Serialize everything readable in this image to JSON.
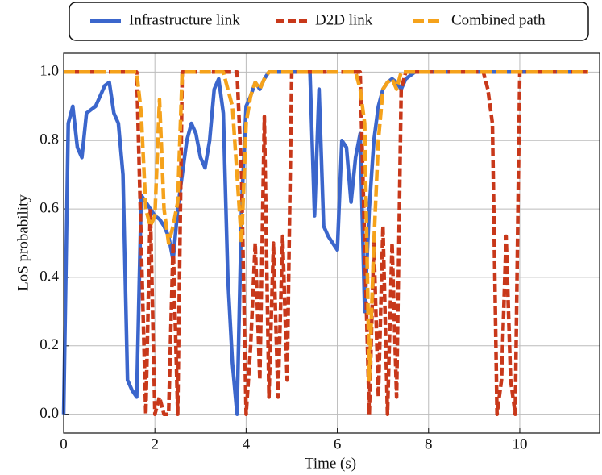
{
  "chart_data": {
    "type": "line",
    "xlabel": "Time (s)",
    "ylabel": "LoS probability",
    "x": [
      0,
      0.1,
      0.2,
      0.3,
      0.4,
      0.5,
      0.6,
      0.7,
      0.8,
      0.9,
      1,
      1.1,
      1.2,
      1.3,
      1.4,
      1.5,
      1.6,
      1.7,
      1.8,
      1.9,
      2,
      2.1,
      2.2,
      2.3,
      2.4,
      2.5,
      2.6,
      2.7,
      2.8,
      2.9,
      3,
      3.1,
      3.2,
      3.3,
      3.4,
      3.5,
      3.6,
      3.7,
      3.8,
      3.9,
      4,
      4.1,
      4.2,
      4.3,
      4.4,
      4.5,
      4.6,
      4.7,
      4.8,
      4.9,
      5,
      5.1,
      5.2,
      5.3,
      5.4,
      5.5,
      5.6,
      5.7,
      5.8,
      5.9,
      6,
      6.1,
      6.2,
      6.3,
      6.4,
      6.5,
      6.6,
      6.7,
      6.8,
      6.9,
      7,
      7.1,
      7.2,
      7.3,
      7.4,
      7.5,
      7.6,
      7.7,
      7.8,
      7.9,
      8,
      8.1,
      8.2,
      8.3,
      8.4,
      8.5,
      8.6,
      8.7,
      8.8,
      8.9,
      9,
      9.1,
      9.2,
      9.3,
      9.4,
      9.5,
      9.6,
      9.7,
      9.8,
      9.9,
      10,
      10.1,
      10.2,
      10.3,
      10.4,
      10.5,
      10.6,
      10.7,
      10.8,
      10.9,
      11,
      11.1,
      11.2,
      11.3,
      11.4,
      11.5
    ],
    "series": [
      {
        "name": "Infrastructure link",
        "color": "#3b66cc",
        "dash": "none",
        "values": [
          0,
          0.85,
          0.9,
          0.78,
          0.75,
          0.88,
          0.89,
          0.9,
          0.93,
          0.96,
          0.97,
          0.88,
          0.85,
          0.7,
          0.1,
          0.07,
          0.05,
          0.64,
          0.62,
          0.6,
          0.58,
          0.57,
          0.55,
          0.52,
          0.45,
          0.6,
          0.7,
          0.8,
          0.85,
          0.82,
          0.75,
          0.72,
          0.8,
          0.95,
          0.98,
          0.88,
          0.4,
          0.15,
          0,
          0.6,
          0.9,
          0.93,
          0.97,
          0.95,
          0.98,
          1,
          1,
          1,
          1,
          1,
          1,
          1,
          1,
          1,
          1,
          0.58,
          0.95,
          0.55,
          0.52,
          0.5,
          0.48,
          0.8,
          0.78,
          0.62,
          0.75,
          0.82,
          0.3,
          0.6,
          0.8,
          0.9,
          0.95,
          0.97,
          0.98,
          0.97,
          0.95,
          0.98,
          0.99,
          1,
          1,
          1,
          1,
          1,
          1,
          1,
          1,
          1,
          1,
          1,
          1,
          1,
          1,
          1,
          1,
          1,
          1,
          1,
          1,
          1,
          1,
          1,
          1,
          1,
          1,
          1,
          1,
          1,
          1,
          1,
          1,
          1,
          1,
          1,
          1,
          1,
          1,
          1
        ]
      },
      {
        "name": "D2D link",
        "color": "#c8381a",
        "dash": "10,4",
        "values": [
          1,
          1,
          1,
          1,
          1,
          1,
          1,
          1,
          1,
          1,
          1,
          1,
          1,
          1,
          1,
          1,
          1,
          0.5,
          0,
          0.6,
          0,
          0.05,
          0,
          0,
          0.5,
          0,
          1,
          1,
          1,
          1,
          1,
          1,
          1,
          1,
          1,
          1,
          1,
          1,
          1,
          0.7,
          0,
          0.2,
          0.5,
          0.1,
          0.87,
          0.05,
          0.5,
          0.05,
          0.52,
          0.1,
          1,
          1,
          1,
          1,
          1,
          1,
          1,
          1,
          1,
          1,
          1,
          1,
          1,
          1,
          1,
          1,
          0.5,
          0,
          0.5,
          0.05,
          0.55,
          0,
          0.5,
          0.05,
          0.95,
          1,
          1,
          1,
          1,
          1,
          1,
          1,
          1,
          1,
          1,
          1,
          1,
          1,
          1,
          1,
          1,
          1,
          1,
          0.95,
          0.85,
          0,
          0.1,
          0.52,
          0.1,
          0,
          1,
          1,
          1,
          1,
          1,
          1,
          1,
          1,
          1,
          1,
          1,
          1,
          1,
          1,
          1,
          1
        ]
      },
      {
        "name": "Combined path",
        "color": "#f5a21b",
        "dash": "14,5",
        "values": [
          1,
          1,
          1,
          1,
          1,
          1,
          1,
          1,
          1,
          1,
          1,
          1,
          1,
          1,
          1,
          1,
          1,
          0.88,
          0.6,
          0.55,
          0.58,
          0.92,
          0.6,
          0.5,
          0.55,
          0.62,
          1,
          1,
          1,
          1,
          1,
          1,
          1,
          1,
          1,
          1,
          0.95,
          0.9,
          0.7,
          0.5,
          0.85,
          0.93,
          0.97,
          0.95,
          0.98,
          1,
          1,
          1,
          1,
          1,
          1,
          1,
          1,
          1,
          1,
          1,
          1,
          1,
          1,
          1,
          1,
          1,
          1,
          1,
          1,
          0.95,
          0.85,
          0.1,
          0.5,
          0.8,
          0.95,
          0.97,
          0.98,
          0.95,
          1,
          1,
          1,
          1,
          1,
          1,
          1,
          1,
          1,
          1,
          1,
          1,
          1,
          1,
          1,
          1,
          1,
          1,
          1,
          1,
          1,
          1,
          1,
          1,
          1,
          1,
          1,
          1,
          1,
          1,
          1,
          1,
          1,
          1,
          1,
          1,
          1,
          1,
          1,
          1,
          1,
          1
        ]
      }
    ],
    "xlim": [
      0,
      11.75
    ],
    "ylim": [
      -0.055,
      1.055
    ],
    "xticks": [
      0,
      2,
      4,
      6,
      8,
      10
    ],
    "yticks": [
      {
        "value": 0,
        "label": "0.0"
      },
      {
        "value": 0.2,
        "label": "0.2"
      },
      {
        "value": 0.4,
        "label": "0.4"
      },
      {
        "value": 0.6,
        "label": "0.6"
      },
      {
        "value": 0.8,
        "label": "0.8"
      },
      {
        "value": 1,
        "label": "1.0"
      }
    ],
    "grid": true,
    "legend": "top"
  }
}
